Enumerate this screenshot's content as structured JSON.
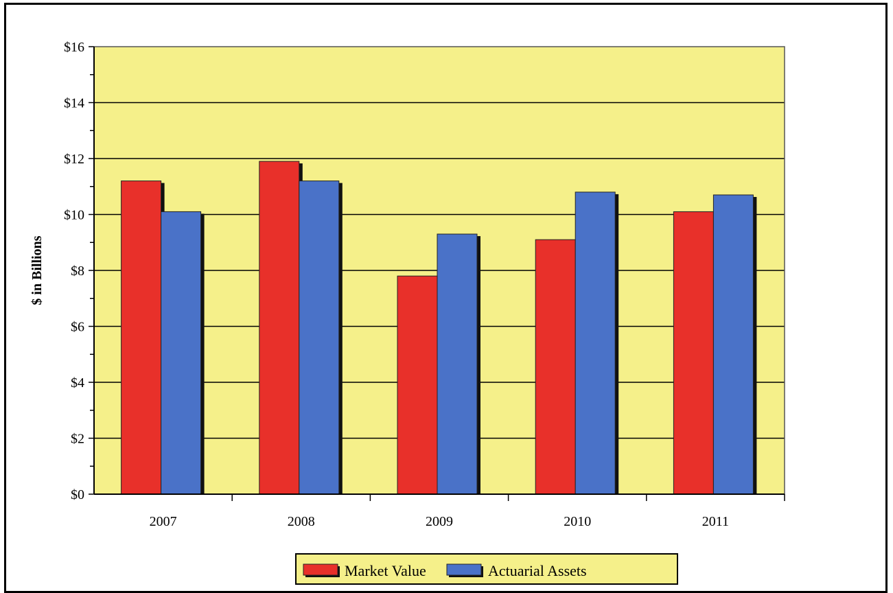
{
  "chart_data": {
    "type": "bar",
    "categories": [
      "2007",
      "2008",
      "2009",
      "2010",
      "2011"
    ],
    "series": [
      {
        "name": "Market Value",
        "values": [
          11.2,
          11.9,
          7.8,
          9.1,
          10.1
        ],
        "color": "#e8302a"
      },
      {
        "name": "Actuarial Assets",
        "values": [
          10.1,
          11.2,
          9.3,
          10.8,
          10.7
        ],
        "color": "#4a72c8"
      }
    ],
    "title": "",
    "xlabel": "",
    "ylabel": "$ in Billions",
    "ylim": [
      0,
      16
    ],
    "yticks": [
      "$0",
      "$2",
      "$4",
      "$6",
      "$8",
      "$10",
      "$12",
      "$14",
      "$16"
    ],
    "grid": true,
    "plot_background": "#f5f08a",
    "legend_position": "bottom-center"
  }
}
